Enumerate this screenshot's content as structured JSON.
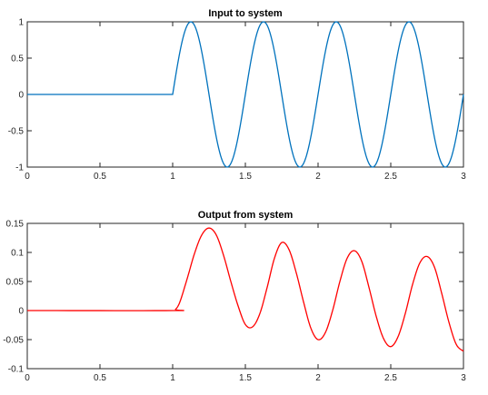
{
  "chart_data": [
    {
      "type": "line",
      "title": "Input to system",
      "xlabel": "",
      "ylabel": "",
      "xlim": [
        0,
        3
      ],
      "ylim": [
        -1,
        1
      ],
      "x_ticks": [
        0,
        0.5,
        1,
        1.5,
        2,
        2.5,
        3
      ],
      "x_tick_labels": [
        "0",
        "0.5",
        "1",
        "1.5",
        "2",
        "2.5",
        "3"
      ],
      "y_ticks": [
        -1,
        -0.5,
        0,
        0.5,
        1
      ],
      "y_tick_labels": [
        "-1",
        "-0.5",
        "0",
        "0.5",
        "1"
      ],
      "grid": false,
      "series": [
        {
          "color": "#0072bd",
          "description": "zero until t=1, then sin(2*pi*2*(t-1)) up to t=3",
          "x": [
            0,
            1,
            1.125,
            1.25,
            1.375,
            1.5,
            1.625,
            1.75,
            1.875,
            2,
            2.125,
            2.25,
            2.375,
            2.5,
            2.625,
            2.75,
            2.875,
            3
          ],
          "y": [
            0,
            0,
            1,
            0,
            -1,
            0,
            1,
            0,
            -1,
            0,
            1,
            0,
            -1,
            0,
            1,
            0,
            -1,
            0
          ]
        }
      ]
    },
    {
      "type": "line",
      "title": "Output from system",
      "xlabel": "",
      "ylabel": "",
      "xlim": [
        0,
        3
      ],
      "ylim": [
        -0.1,
        0.15
      ],
      "x_ticks": [
        0,
        0.5,
        1,
        1.5,
        2,
        2.5,
        3
      ],
      "x_tick_labels": [
        "0",
        "0.5",
        "1",
        "1.5",
        "2",
        "2.5",
        "3"
      ],
      "y_ticks": [
        -0.1,
        -0.05,
        0,
        0.05,
        0.1,
        0.15
      ],
      "y_tick_labels": [
        "-0.1",
        "-0.05",
        "0",
        "0.05",
        "0.1",
        "0.15"
      ],
      "grid": false,
      "series": [
        {
          "color": "#ff0000",
          "x": [
            0,
            1,
            1.02,
            1.05,
            1.1,
            1.15,
            1.2,
            1.25,
            1.3,
            1.35,
            1.4,
            1.45,
            1.5,
            1.55,
            1.6,
            1.65,
            1.7,
            1.75,
            1.8,
            1.85,
            1.9,
            1.95,
            2,
            2.05,
            2.1,
            2.15,
            2.2,
            2.25,
            2.3,
            2.35,
            2.4,
            2.45,
            2.5,
            2.55,
            2.6,
            2.65,
            2.7,
            2.75,
            2.8,
            2.85,
            2.9,
            2.95,
            3
          ],
          "y": [
            0,
            0,
            0.002,
            0.015,
            0.055,
            0.098,
            0.13,
            0.142,
            0.13,
            0.095,
            0.05,
            0.008,
            -0.024,
            -0.028,
            -0.005,
            0.04,
            0.09,
            0.117,
            0.105,
            0.065,
            0.015,
            -0.03,
            -0.05,
            -0.038,
            0.0,
            0.05,
            0.09,
            0.103,
            0.085,
            0.04,
            -0.01,
            -0.048,
            -0.062,
            -0.045,
            -0.005,
            0.045,
            0.082,
            0.093,
            0.075,
            0.03,
            -0.02,
            -0.058,
            -0.07
          ]
        }
      ]
    }
  ]
}
